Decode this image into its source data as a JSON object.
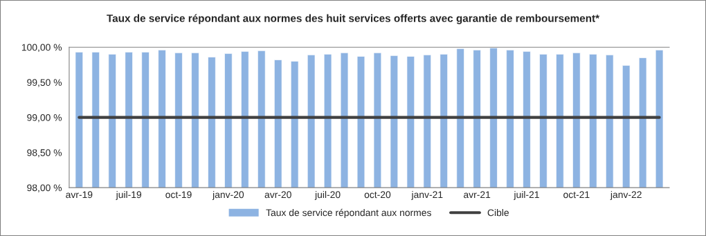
{
  "chart_data": {
    "type": "bar",
    "title": "Taux de service répondant aux normes des huit services offerts avec garantie de remboursement*",
    "categories": [
      "avr-19",
      null,
      null,
      "juil-19",
      null,
      null,
      "oct-19",
      null,
      null,
      "janv-20",
      null,
      null,
      "avr-20",
      null,
      null,
      "juil-20",
      null,
      null,
      "oct-20",
      null,
      null,
      "janv-21",
      null,
      null,
      "avr-21",
      null,
      null,
      "juil-21",
      null,
      null,
      "oct-21",
      null,
      null,
      "janv-22",
      null,
      null
    ],
    "series": [
      {
        "name": "Taux de service répondant aux normes",
        "color": "#8db3e2",
        "values": [
          99.93,
          99.93,
          99.9,
          99.93,
          99.93,
          99.96,
          99.92,
          99.92,
          99.86,
          99.91,
          99.94,
          99.95,
          99.82,
          99.8,
          99.89,
          99.9,
          99.92,
          99.87,
          99.92,
          99.88,
          99.87,
          99.89,
          99.9,
          99.98,
          99.96,
          99.99,
          99.96,
          99.94,
          99.9,
          99.9,
          99.92,
          99.9,
          99.89,
          99.74,
          99.85,
          99.96
        ]
      },
      {
        "name": "Cible",
        "type": "line",
        "color": "#404040",
        "values": [
          99,
          99,
          99,
          99,
          99,
          99,
          99,
          99,
          99,
          99,
          99,
          99,
          99,
          99,
          99,
          99,
          99,
          99,
          99,
          99,
          99,
          99,
          99,
          99,
          99,
          99,
          99,
          99,
          99,
          99,
          99,
          99,
          99,
          99,
          99,
          99
        ]
      }
    ],
    "ylim": [
      98,
      100
    ],
    "yticks": [
      {
        "value": 98,
        "label": "98,00 %"
      },
      {
        "value": 98.5,
        "label": "98,50 %"
      },
      {
        "value": 99,
        "label": "99,00 %"
      },
      {
        "value": 99.5,
        "label": "99,50 %"
      },
      {
        "value": 100,
        "label": "100,00 %"
      }
    ],
    "grid": false,
    "legend": "bottom"
  }
}
